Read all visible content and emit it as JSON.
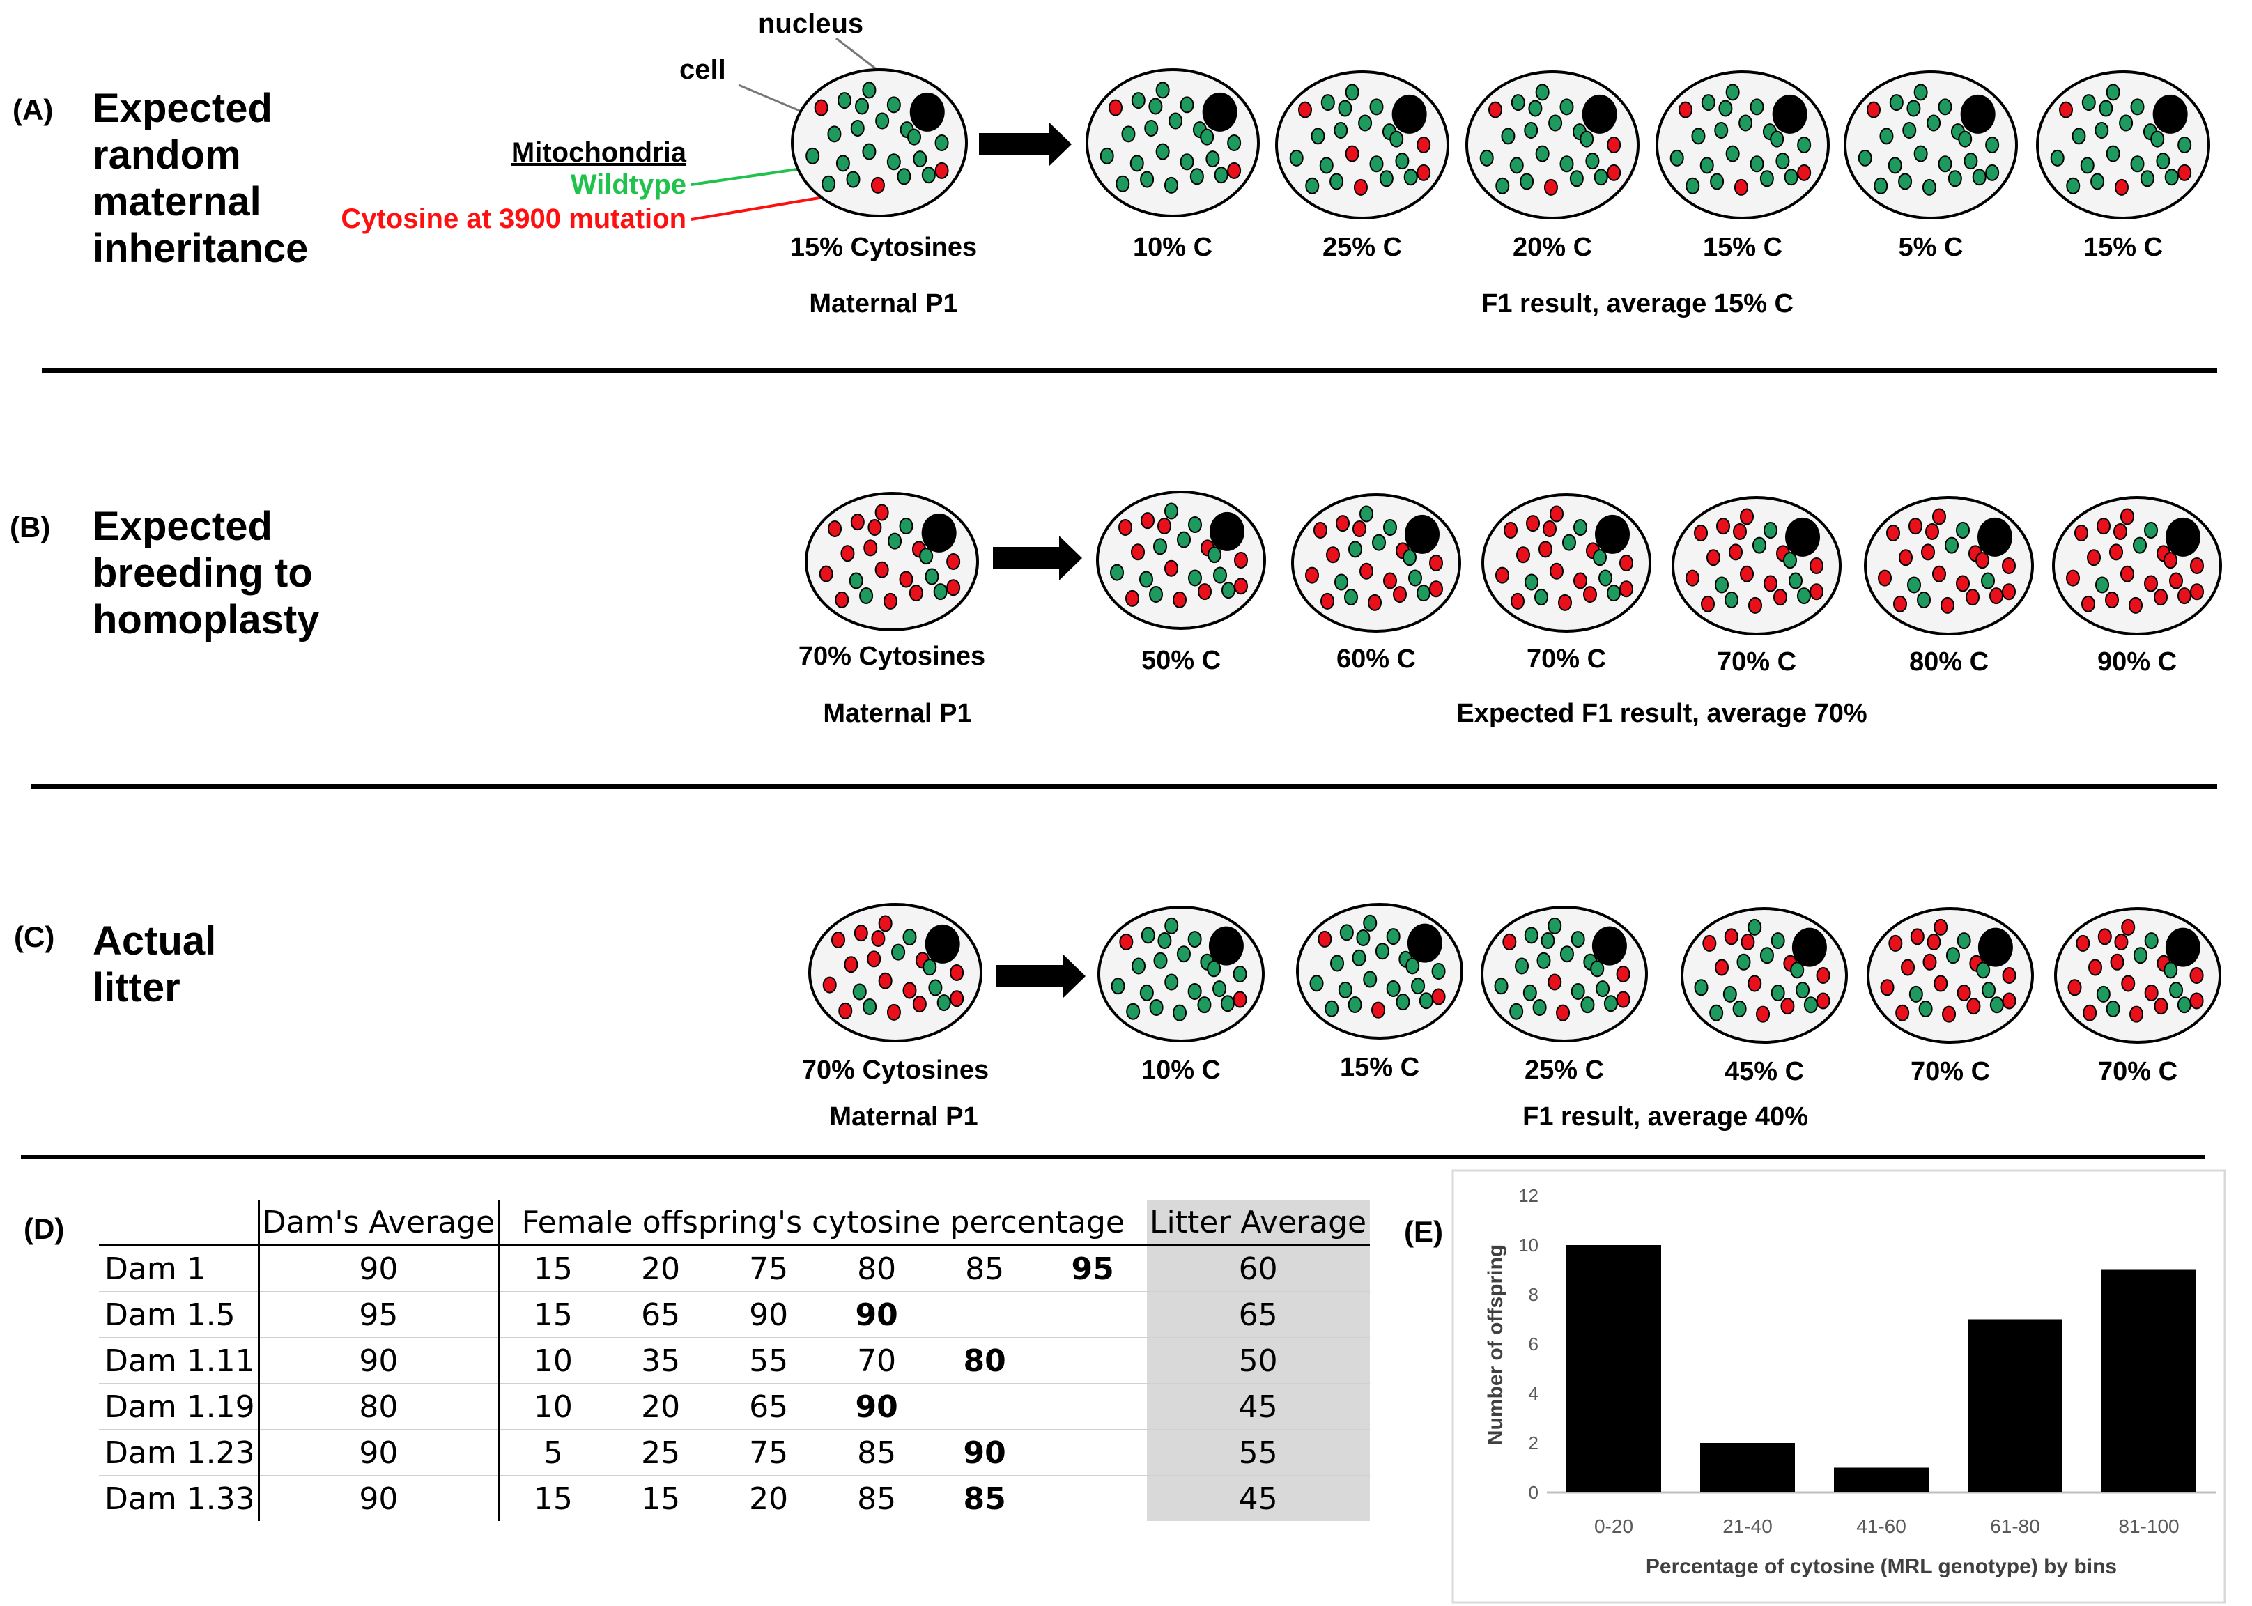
{
  "colors": {
    "wildtype": "#1e9a5e",
    "mutant": "#e8101a",
    "legend_wildtype": "#1fc24a",
    "legend_mutant": "#ff1010",
    "gray": "#d9d9d9"
  },
  "panelA": {
    "tag": "(A)",
    "title_lines": [
      "Expected",
      "random",
      "maternal",
      "inheritance"
    ],
    "nucleus_label": "nucleus",
    "cell_label": "cell",
    "mito_label": "Mitochondria",
    "wildtype_label": "Wildtype",
    "mutation_label": "Cytosine at 3900 mutation",
    "parent_pct": "15% Cytosines",
    "parent_label": "Maternal P1",
    "offspring_pcts": [
      "10% C",
      "25% C",
      "20% C",
      "15% C",
      "5% C",
      "15% C"
    ],
    "result_label": "F1 result, average 15% C"
  },
  "panelB": {
    "tag": "(B)",
    "title_lines": [
      "Expected",
      "breeding to",
      "homoplasty"
    ],
    "parent_pct": "70% Cytosines",
    "parent_label": "Maternal P1",
    "offspring_pcts": [
      "50% C",
      "60% C",
      "70% C",
      "70% C",
      "80% C",
      "90% C"
    ],
    "result_label": "Expected F1 result, average 70%"
  },
  "panelC": {
    "tag": "(C)",
    "title_lines": [
      "Actual",
      "litter"
    ],
    "parent_pct": "70% Cytosines",
    "parent_label": "Maternal P1",
    "offspring_pcts": [
      "10% C",
      "15% C",
      "25% C",
      "45% C",
      "70% C",
      "70% C"
    ],
    "result_label": "F1 result, average 40%"
  },
  "panelD": {
    "tag": "(D)",
    "headers": [
      "",
      "Dam's Average",
      "Female offspring's cytosine percentage",
      "Litter Average"
    ],
    "rows": [
      {
        "dam": "Dam 1",
        "avg": "90",
        "offspring": [
          "15",
          "20",
          "75",
          "80",
          "85",
          "95"
        ],
        "litter": "60"
      },
      {
        "dam": "Dam 1.5",
        "avg": "95",
        "offspring": [
          "15",
          "65",
          "90",
          "90",
          "",
          ""
        ],
        "litter": "65"
      },
      {
        "dam": "Dam 1.11",
        "avg": "90",
        "offspring": [
          "10",
          "35",
          "55",
          "70",
          "80",
          ""
        ],
        "litter": "50"
      },
      {
        "dam": "Dam 1.19",
        "avg": "80",
        "offspring": [
          "10",
          "20",
          "65",
          "90",
          "",
          ""
        ],
        "litter": "45"
      },
      {
        "dam": "Dam 1.23",
        "avg": "90",
        "offspring": [
          "5",
          "25",
          "75",
          "85",
          "90",
          ""
        ],
        "litter": "55"
      },
      {
        "dam": "Dam 1.33",
        "avg": "90",
        "offspring": [
          "15",
          "15",
          "20",
          "85",
          "85",
          ""
        ],
        "litter": "45"
      }
    ]
  },
  "panelE": {
    "tag": "(E)"
  },
  "chart_data": {
    "type": "bar",
    "categories": [
      "0-20",
      "21-40",
      "41-60",
      "61-80",
      "81-100"
    ],
    "values": [
      10,
      2,
      1,
      7,
      9
    ],
    "title": "",
    "xlabel": "Percentage of cytosine (MRL genotype) by bins",
    "ylabel": "Number of offspring",
    "ylim": [
      0,
      12
    ],
    "yticks": [
      "0",
      "2",
      "4",
      "6",
      "8",
      "10",
      "12"
    ],
    "grid": false,
    "bar_color": "#000000"
  }
}
